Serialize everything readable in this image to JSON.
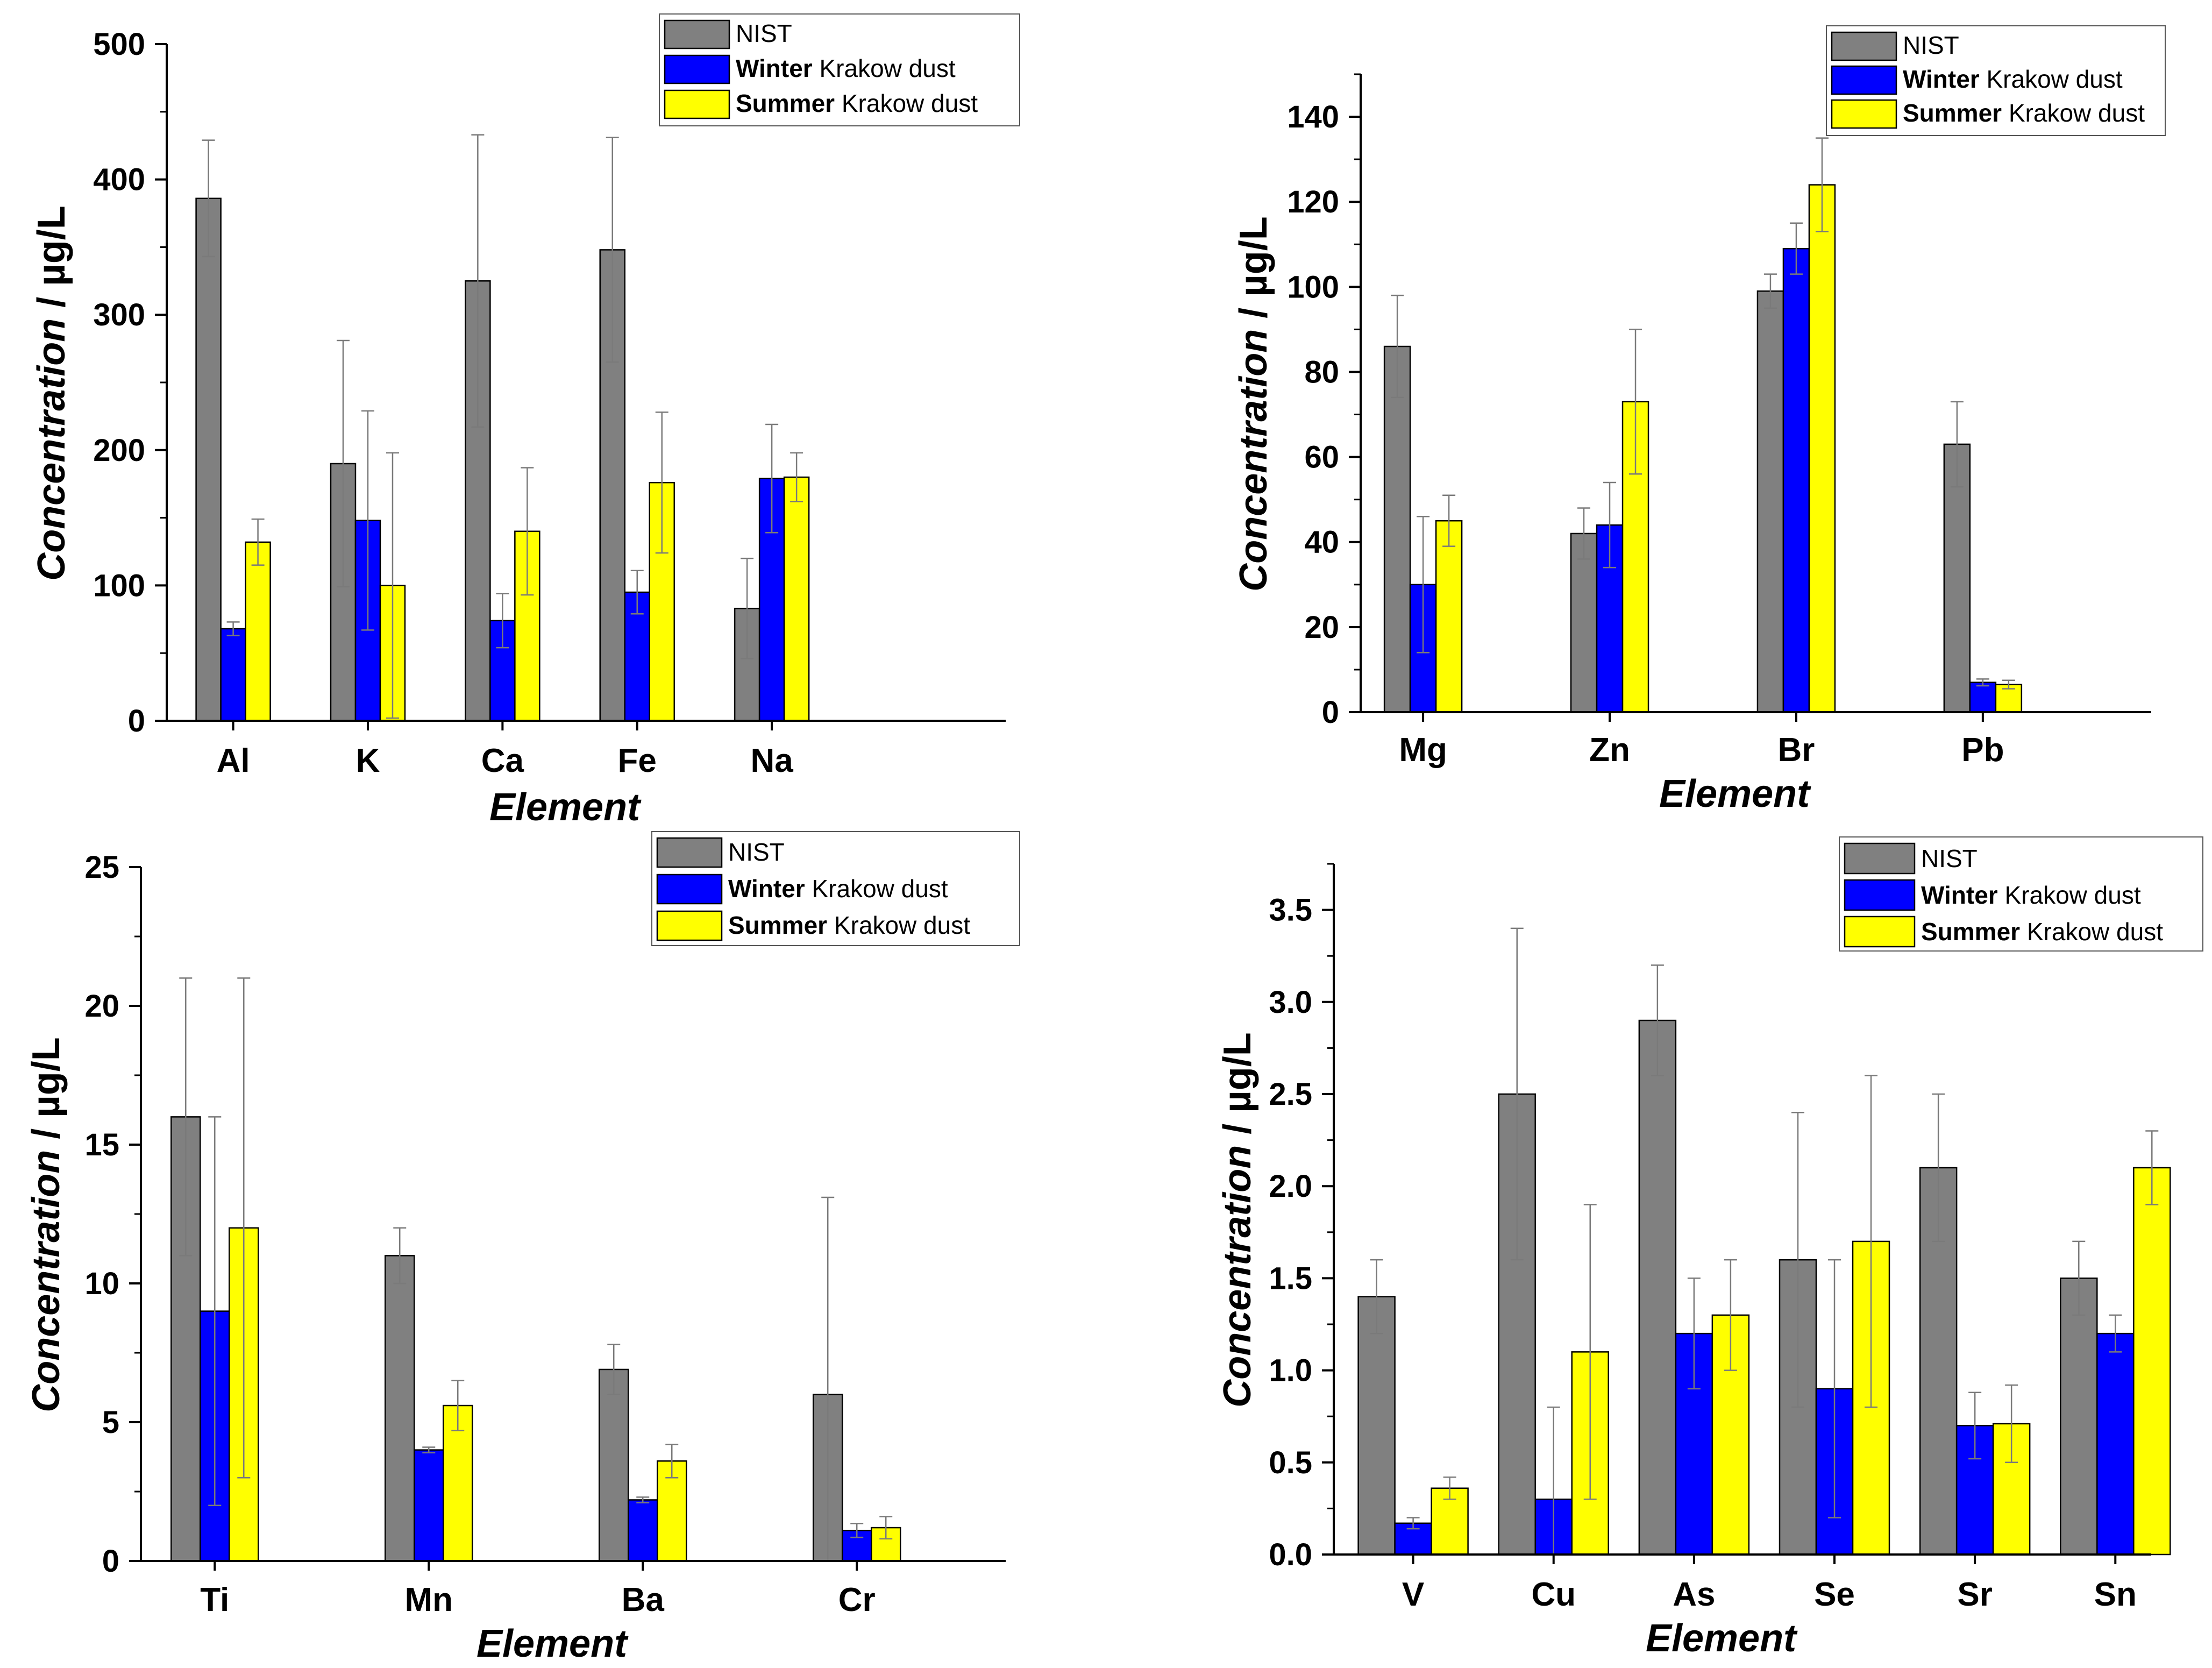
{
  "colors": {
    "nist": "#808080",
    "winter": "#0000ff",
    "summer": "#ffff00",
    "axis": "#000000",
    "errorbar": "#7a7a7a"
  },
  "legend": [
    {
      "bold": "",
      "text": "NIST"
    },
    {
      "bold": "Winter",
      "text": " Krakow dust"
    },
    {
      "bold": "Summer",
      "text": " Krakow dust"
    }
  ],
  "chart_data": [
    {
      "type": "bar",
      "title": "",
      "xlabel": "Element",
      "ylabel": "Concentration / µg/L",
      "ylabel_italic": "Concentration",
      "ylabel_rest": " / µg/L",
      "ylim": [
        0,
        500
      ],
      "yticks": [
        "0",
        "100",
        "200",
        "300",
        "400",
        "500"
      ],
      "categories": [
        "Al",
        "K",
        "Ca",
        "Fe",
        "Na"
      ],
      "series": [
        {
          "name": "NIST",
          "values": [
            386,
            190,
            325,
            348,
            83
          ],
          "errors": [
            43,
            91,
            108,
            83,
            37
          ]
        },
        {
          "name": "Winter Krakow dust",
          "values": [
            68,
            148,
            74,
            95,
            179
          ],
          "errors": [
            5,
            81,
            20,
            16,
            40
          ]
        },
        {
          "name": "Summer Krakow dust",
          "values": [
            132,
            100,
            140,
            176,
            180
          ],
          "errors": [
            17,
            98,
            47,
            52,
            18
          ]
        }
      ]
    },
    {
      "type": "bar",
      "title": "",
      "xlabel": "Element",
      "ylabel": "Concentration / µg/L",
      "ylabel_italic": "Concentration",
      "ylabel_rest": " / µg/L",
      "ylim": [
        0,
        150
      ],
      "yticks": [
        "0",
        "20",
        "40",
        "60",
        "80",
        "100",
        "120",
        "140"
      ],
      "categories": [
        "Mg",
        "Zn",
        "Br",
        "Pb"
      ],
      "series": [
        {
          "name": "NIST",
          "values": [
            86,
            42,
            99,
            63
          ],
          "errors": [
            12,
            6,
            4,
            10
          ]
        },
        {
          "name": "Winter Krakow dust",
          "values": [
            30,
            44,
            109,
            7
          ],
          "errors": [
            16,
            10,
            6,
            0.8
          ]
        },
        {
          "name": "Summer Krakow dust",
          "values": [
            45,
            73,
            124,
            6.5
          ],
          "errors": [
            6,
            17,
            11,
            1
          ]
        }
      ]
    },
    {
      "type": "bar",
      "title": "",
      "xlabel": "Element",
      "ylabel": "Concentration / µg/L",
      "ylabel_italic": "Concentration",
      "ylabel_rest": " / µg/L",
      "ylim": [
        0,
        25
      ],
      "yticks": [
        "0",
        "5",
        "10",
        "15",
        "20",
        "25"
      ],
      "categories": [
        "Ti",
        "Mn",
        "Ba",
        "Cr"
      ],
      "series": [
        {
          "name": "NIST",
          "values": [
            16,
            11,
            6.9,
            6
          ],
          "errors": [
            5,
            1,
            0.9,
            7.1
          ]
        },
        {
          "name": "Winter Krakow dust",
          "values": [
            9,
            4,
            2.2,
            1.1
          ],
          "errors": [
            7,
            0.1,
            0.1,
            0.25
          ]
        },
        {
          "name": "Summer Krakow dust",
          "values": [
            12,
            5.6,
            3.6,
            1.2
          ],
          "errors": [
            9,
            0.9,
            0.6,
            0.4
          ]
        }
      ]
    },
    {
      "type": "bar",
      "title": "",
      "xlabel": "Element",
      "ylabel": "Concentration / µg/L",
      "ylabel_italic": "Concentration",
      "ylabel_rest": " / µg/L",
      "ylim": [
        0,
        3.75
      ],
      "yticks": [
        "0.0",
        "0.5",
        "1.0",
        "1.5",
        "2.0",
        "2.5",
        "3.0",
        "3.5"
      ],
      "categories": [
        "V",
        "Cu",
        "As",
        "Se",
        "Sr",
        "Sn"
      ],
      "series": [
        {
          "name": "NIST",
          "values": [
            1.4,
            2.5,
            2.9,
            1.6,
            2.1,
            1.5
          ],
          "errors": [
            0.2,
            0.9,
            0.3,
            0.8,
            0.4,
            0.2
          ]
        },
        {
          "name": "Winter Krakow dust",
          "values": [
            0.17,
            0.3,
            1.2,
            0.9,
            0.7,
            1.2
          ],
          "errors": [
            0.03,
            0.5,
            0.3,
            0.7,
            0.18,
            0.1
          ]
        },
        {
          "name": "Summer Krakow dust",
          "values": [
            0.36,
            1.1,
            1.3,
            1.7,
            0.71,
            2.1
          ],
          "errors": [
            0.06,
            0.8,
            0.3,
            0.9,
            0.21,
            0.2
          ]
        }
      ]
    }
  ]
}
